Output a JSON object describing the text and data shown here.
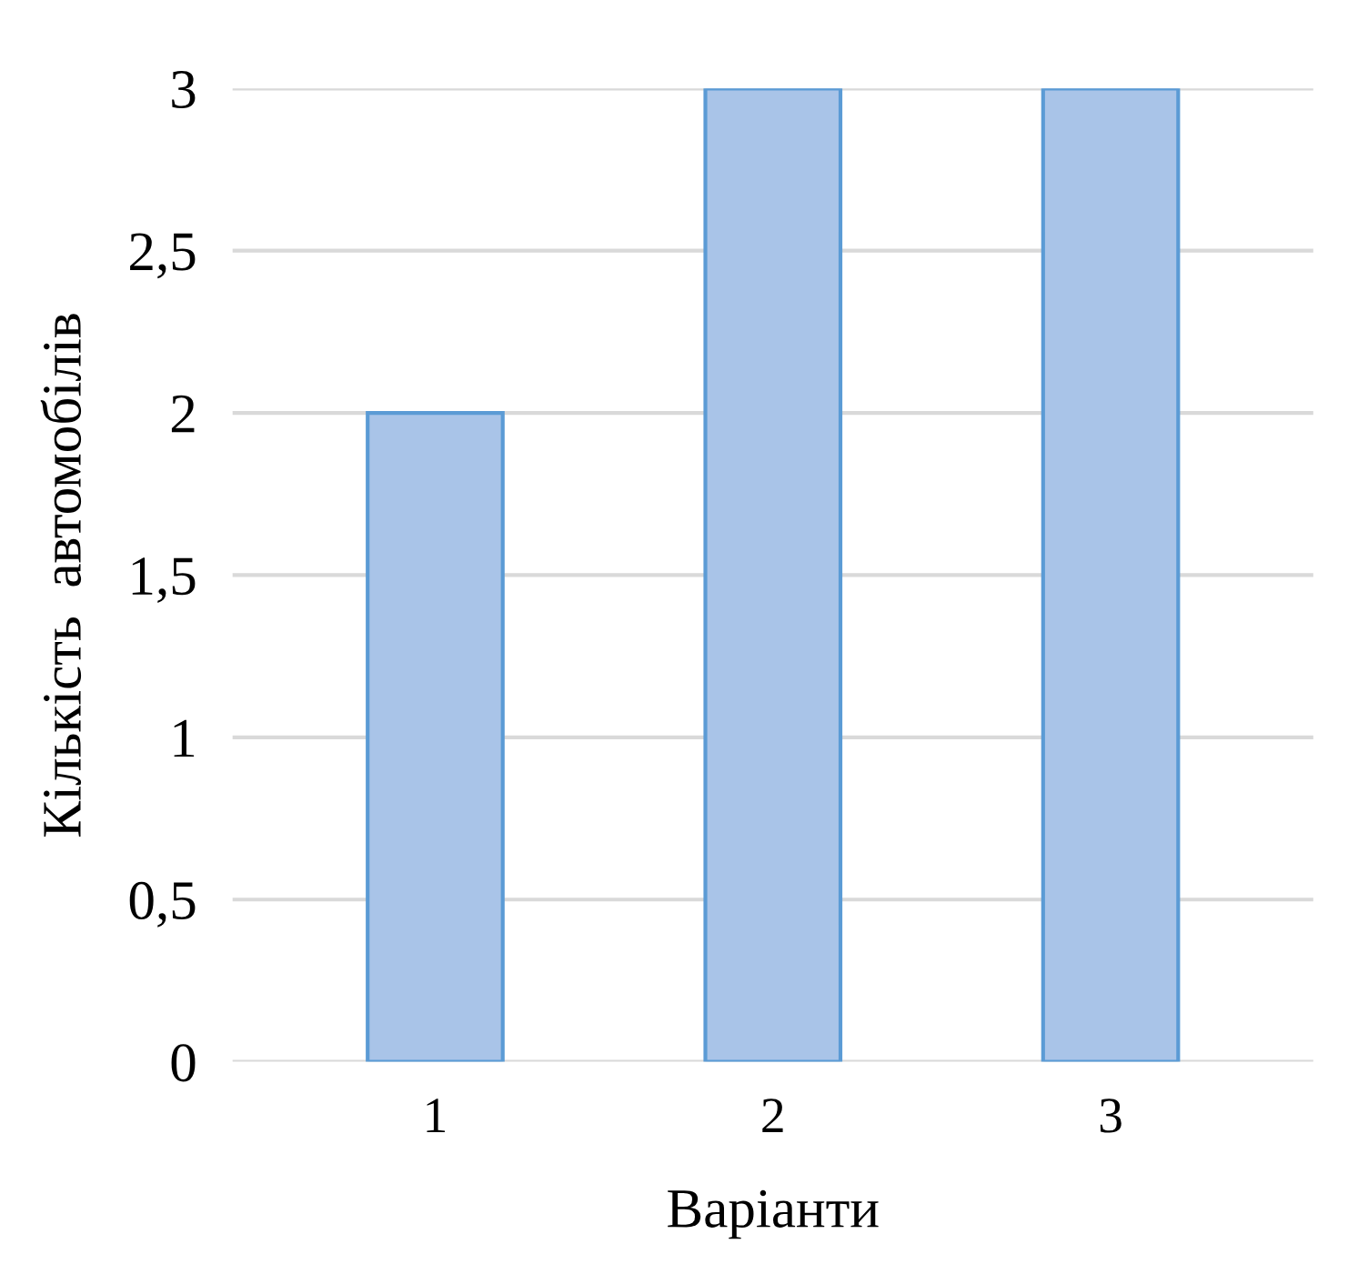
{
  "chart_data": {
    "type": "bar",
    "xlabel": "Варіанти",
    "ylabel": "Кількість  автомобілів",
    "categories": [
      "1",
      "2",
      "3"
    ],
    "values": [
      2,
      3,
      3
    ],
    "color": "#a9c4e8",
    "ylim": [
      0,
      3
    ],
    "yticks": [
      0,
      {
        "value": 0.5,
        "label": "0,5"
      },
      1,
      {
        "value": 1.5,
        "label": "1,5"
      },
      2,
      {
        "value": 2.5,
        "label": "2,5"
      },
      3
    ],
    "grid": "y"
  }
}
